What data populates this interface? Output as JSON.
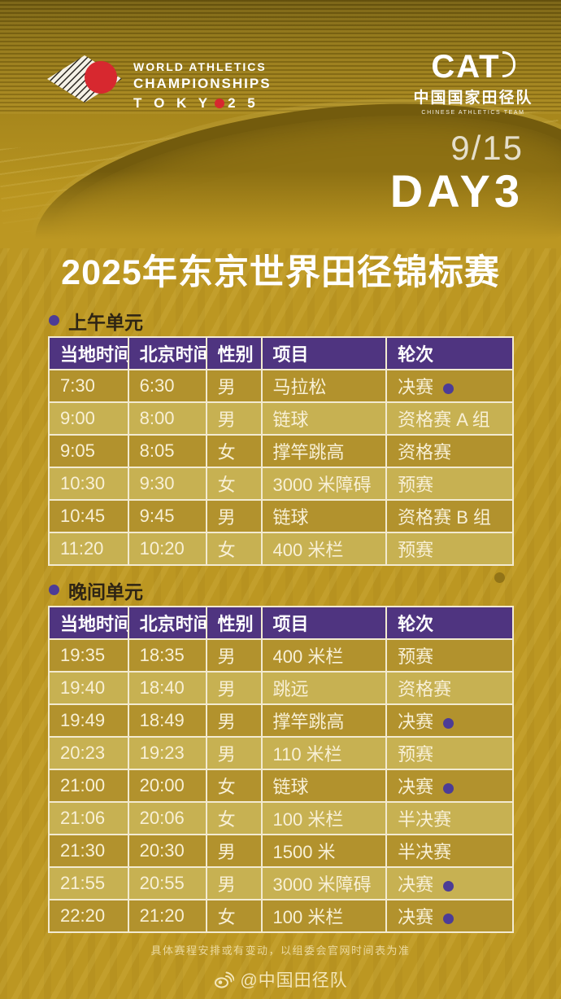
{
  "hero": {
    "wa_logo": {
      "line1": "WORLD ATHLETICS",
      "line2": "CHAMPIONSHIPS",
      "line3_prefix": "T O K Y",
      "line3_suffix": "2 5"
    },
    "cat_logo": {
      "acronym": "CAT",
      "name_cn": "中国国家田径队",
      "name_en": "CHINESE ATHLETICS TEAM"
    },
    "date": "9/15",
    "day": "DAY3"
  },
  "title": "2025年东京世界田径锦标赛",
  "tables": {
    "columns": [
      "当地时间",
      "北京时间",
      "性别",
      "项目",
      "轮次"
    ],
    "morning": {
      "label": "上午单元",
      "rows": [
        {
          "local": "7:30",
          "beijing": "6:30",
          "gender": "男",
          "event": "马拉松",
          "round": "决赛",
          "final_dot": true
        },
        {
          "local": "9:00",
          "beijing": "8:00",
          "gender": "男",
          "event": "链球",
          "round": "资格赛 A 组",
          "final_dot": false
        },
        {
          "local": "9:05",
          "beijing": "8:05",
          "gender": "女",
          "event": "撑竿跳高",
          "round": "资格赛",
          "final_dot": false
        },
        {
          "local": "10:30",
          "beijing": "9:30",
          "gender": "女",
          "event": "3000 米障碍",
          "round": "预赛",
          "final_dot": false
        },
        {
          "local": "10:45",
          "beijing": "9:45",
          "gender": "男",
          "event": "链球",
          "round": "资格赛 B 组",
          "final_dot": false
        },
        {
          "local": "11:20",
          "beijing": "10:20",
          "gender": "女",
          "event": "400 米栏",
          "round": "预赛",
          "final_dot": false
        }
      ]
    },
    "evening": {
      "label": "晚间单元",
      "rows": [
        {
          "local": "19:35",
          "beijing": "18:35",
          "gender": "男",
          "event": "400 米栏",
          "round": "预赛",
          "final_dot": false
        },
        {
          "local": "19:40",
          "beijing": "18:40",
          "gender": "男",
          "event": "跳远",
          "round": "资格赛",
          "final_dot": false
        },
        {
          "local": "19:49",
          "beijing": "18:49",
          "gender": "男",
          "event": "撑竿跳高",
          "round": "决赛",
          "final_dot": true
        },
        {
          "local": "20:23",
          "beijing": "19:23",
          "gender": "男",
          "event": "110 米栏",
          "round": "预赛",
          "final_dot": false
        },
        {
          "local": "21:00",
          "beijing": "20:00",
          "gender": "女",
          "event": "链球",
          "round": "决赛",
          "final_dot": true
        },
        {
          "local": "21:06",
          "beijing": "20:06",
          "gender": "女",
          "event": "100 米栏",
          "round": "半决赛",
          "final_dot": false
        },
        {
          "local": "21:30",
          "beijing": "20:30",
          "gender": "男",
          "event": "1500 米",
          "round": "半决赛",
          "final_dot": false
        },
        {
          "local": "21:55",
          "beijing": "20:55",
          "gender": "男",
          "event": "3000 米障碍",
          "round": "决赛",
          "final_dot": true
        },
        {
          "local": "22:20",
          "beijing": "21:20",
          "gender": "女",
          "event": "100 米栏",
          "round": "决赛",
          "final_dot": true
        }
      ]
    }
  },
  "footer": {
    "note": "具体赛程安排或有变动，以组委会官网时间表为准",
    "weibo_handle": "@中国田径队"
  },
  "colors": {
    "purple_header": "#4f3480",
    "row_dark": "#b2922d",
    "row_light": "#c7b152",
    "border_cream": "#f2ead0",
    "dot_purple": "#4c3c96",
    "background_gold": "#bc9722",
    "red_accent": "#d7282f"
  }
}
